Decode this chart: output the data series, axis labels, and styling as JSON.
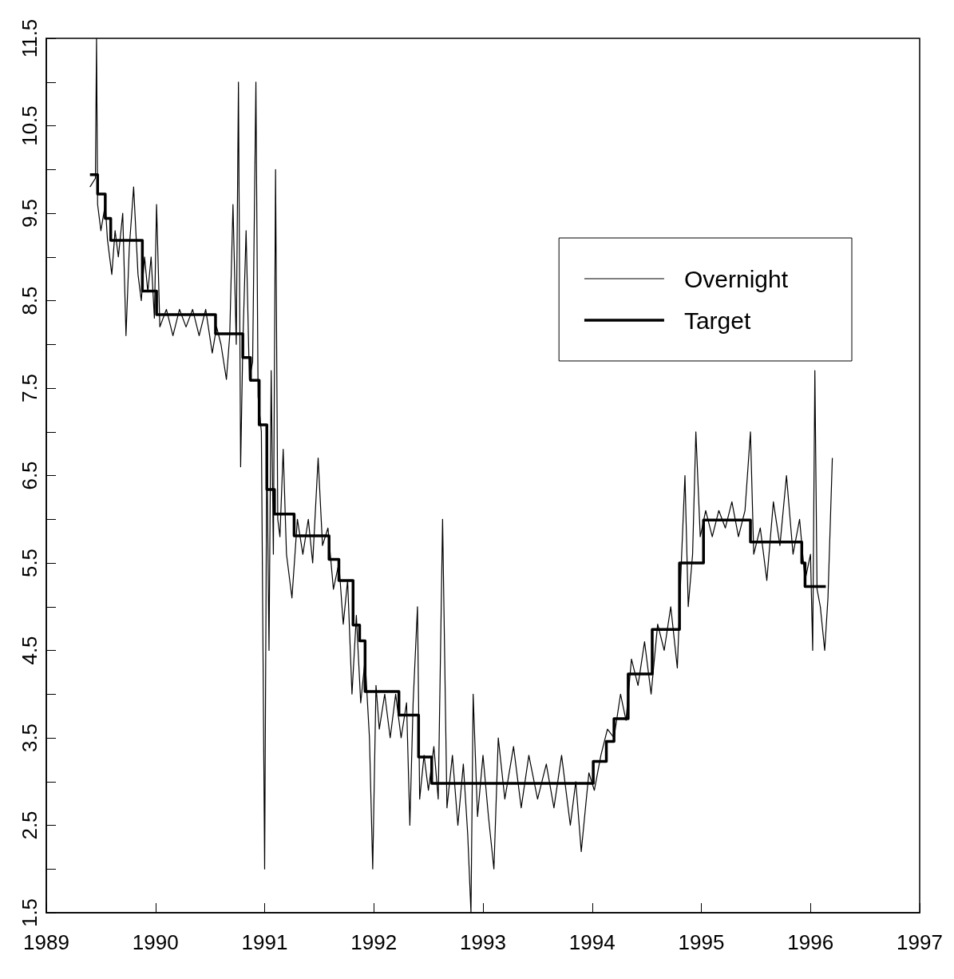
{
  "chart_data": {
    "type": "line",
    "xlim": [
      1989,
      1997
    ],
    "xticks": [
      1989,
      1990,
      1991,
      1992,
      1993,
      1994,
      1995,
      1996,
      1997
    ],
    "ylim": [
      1.5,
      11.5
    ],
    "yticks": [
      1.5,
      {
        "value": 2,
        "label": null
      },
      2.5,
      {
        "value": 3,
        "label": null
      },
      3.5,
      {
        "value": 4,
        "label": null
      },
      4.5,
      {
        "value": 5,
        "label": null
      },
      5.5,
      {
        "value": 6,
        "label": null
      },
      6.5,
      {
        "value": 7,
        "label": null
      },
      7.5,
      {
        "value": 8,
        "label": null
      },
      8.5,
      {
        "value": 9,
        "label": null
      },
      9.5,
      {
        "value": 10,
        "label": null
      },
      10.5,
      {
        "value": 11,
        "label": null
      },
      11.5
    ],
    "grid": false,
    "legend": "top right",
    "marker": "none",
    "line_style": "solid",
    "series": [
      {
        "name": "Overnight",
        "type": "line",
        "color": "#000000",
        "x": [
          1989.4,
          1989.45,
          1989.46,
          1989.47,
          1989.5,
          1989.54,
          1989.56,
          1989.6,
          1989.63,
          1989.66,
          1989.7,
          1989.73,
          1989.76,
          1989.8,
          1989.84,
          1989.87,
          1989.9,
          1989.93,
          1989.96,
          1989.99,
          1990.01,
          1990.04,
          1990.1,
          1990.16,
          1990.22,
          1990.28,
          1990.34,
          1990.4,
          1990.46,
          1990.52,
          1990.56,
          1990.6,
          1990.65,
          1990.68,
          1990.71,
          1990.74,
          1990.76,
          1990.78,
          1990.8,
          1990.83,
          1990.86,
          1990.89,
          1990.92,
          1990.94,
          1990.97,
          1991.0,
          1991.02,
          1991.04,
          1991.06,
          1991.08,
          1991.1,
          1991.12,
          1991.14,
          1991.17,
          1991.2,
          1991.25,
          1991.3,
          1991.35,
          1991.4,
          1991.44,
          1991.49,
          1991.53,
          1991.58,
          1991.63,
          1991.68,
          1991.72,
          1991.76,
          1991.8,
          1991.84,
          1991.88,
          1991.92,
          1991.96,
          1991.99,
          1992.02,
          1992.05,
          1992.1,
          1992.15,
          1992.2,
          1992.25,
          1992.3,
          1992.33,
          1992.36,
          1992.4,
          1992.42,
          1992.46,
          1992.5,
          1992.55,
          1992.59,
          1992.63,
          1992.67,
          1992.72,
          1992.77,
          1992.82,
          1992.86,
          1992.89,
          1992.91,
          1992.95,
          1993.0,
          1993.05,
          1993.1,
          1993.14,
          1993.2,
          1993.28,
          1993.35,
          1993.42,
          1993.5,
          1993.58,
          1993.65,
          1993.72,
          1993.8,
          1993.85,
          1993.9,
          1993.97,
          1994.02,
          1994.08,
          1994.14,
          1994.2,
          1994.26,
          1994.31,
          1994.36,
          1994.42,
          1994.48,
          1994.54,
          1994.6,
          1994.66,
          1994.72,
          1994.78,
          1994.82,
          1994.85,
          1994.88,
          1994.92,
          1994.95,
          1994.99,
          1995.04,
          1995.1,
          1995.16,
          1995.22,
          1995.28,
          1995.34,
          1995.4,
          1995.45,
          1995.48,
          1995.54,
          1995.6,
          1995.66,
          1995.72,
          1995.78,
          1995.84,
          1995.9,
          1995.95,
          1996.0,
          1996.02,
          1996.04,
          1996.06,
          1996.09,
          1996.13,
          1996.16,
          1996.2
        ],
        "values": [
          9.8,
          9.9,
          11.5,
          9.6,
          9.3,
          9.6,
          9.2,
          8.8,
          9.3,
          9.0,
          9.5,
          8.1,
          9.1,
          9.8,
          8.8,
          8.5,
          9.0,
          8.6,
          9.0,
          8.3,
          9.6,
          8.2,
          8.4,
          8.1,
          8.4,
          8.2,
          8.4,
          8.1,
          8.4,
          7.9,
          8.2,
          8.0,
          7.6,
          8.1,
          9.6,
          8.0,
          11.0,
          6.6,
          8.0,
          9.3,
          7.6,
          7.8,
          11.0,
          7.4,
          7.0,
          2.0,
          6.9,
          4.5,
          7.7,
          5.6,
          10.0,
          6.0,
          5.8,
          6.8,
          5.6,
          5.1,
          6.0,
          5.6,
          6.0,
          5.5,
          6.7,
          5.7,
          5.9,
          5.2,
          5.5,
          4.8,
          5.3,
          4.0,
          4.9,
          3.9,
          4.4,
          3.5,
          2.0,
          4.1,
          3.6,
          4.0,
          3.5,
          4.0,
          3.5,
          3.9,
          2.5,
          3.9,
          5.0,
          2.8,
          3.3,
          2.9,
          3.4,
          2.8,
          6.0,
          2.7,
          3.3,
          2.5,
          3.2,
          2.4,
          1.5,
          4.0,
          2.6,
          3.3,
          2.6,
          2.0,
          3.5,
          2.8,
          3.4,
          2.7,
          3.3,
          2.8,
          3.2,
          2.7,
          3.3,
          2.5,
          3.0,
          2.2,
          3.1,
          2.9,
          3.3,
          3.6,
          3.5,
          4.0,
          3.7,
          4.4,
          4.1,
          4.6,
          4.0,
          4.8,
          4.5,
          5.0,
          4.3,
          5.6,
          6.5,
          5.0,
          5.6,
          7.0,
          5.8,
          6.1,
          5.8,
          6.1,
          5.9,
          6.2,
          5.8,
          6.1,
          7.0,
          5.6,
          5.9,
          5.3,
          6.2,
          5.7,
          6.5,
          5.6,
          6.0,
          5.3,
          5.6,
          4.5,
          7.7,
          5.2,
          5.0,
          4.5,
          5.1,
          6.7
        ]
      },
      {
        "name": "Target",
        "type": "step",
        "color": "#000000",
        "x": [
          1989.4,
          1989.47,
          1989.54,
          1989.59,
          1989.88,
          1990.01,
          1990.55,
          1990.8,
          1990.87,
          1990.95,
          1991.02,
          1991.09,
          1991.27,
          1991.59,
          1991.68,
          1991.81,
          1991.87,
          1991.92,
          1992.23,
          1992.41,
          1992.53,
          1994.01,
          1994.13,
          1994.2,
          1994.33,
          1994.55,
          1994.8,
          1995.02,
          1995.45,
          1995.92,
          1995.95,
          1996.14
        ],
        "values": [
          9.94,
          9.72,
          9.44,
          9.19,
          8.61,
          8.34,
          8.12,
          7.85,
          7.59,
          7.08,
          6.34,
          6.06,
          5.81,
          5.54,
          5.3,
          4.79,
          4.61,
          4.03,
          3.76,
          3.28,
          2.98,
          3.23,
          3.46,
          3.72,
          4.23,
          4.74,
          5.5,
          5.99,
          5.74,
          5.5,
          5.23,
          5.23
        ]
      }
    ]
  }
}
